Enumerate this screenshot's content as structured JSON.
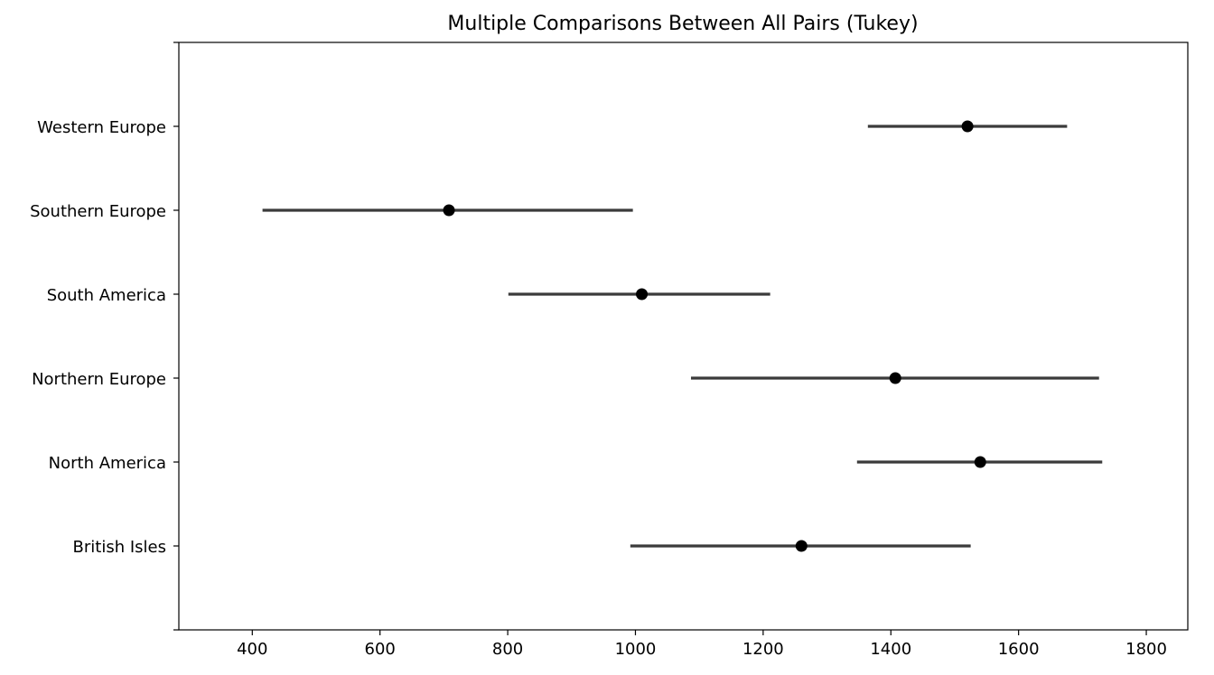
{
  "chart_data": {
    "type": "scatter",
    "title": "Multiple Comparisons Between All Pairs (Tukey)",
    "xlabel": "",
    "ylabel": "",
    "xlim": [
      285,
      1865
    ],
    "x_ticks": [
      400,
      600,
      800,
      1000,
      1200,
      1400,
      1600,
      1800
    ],
    "x_tick_labels": [
      "400",
      "600",
      "800",
      "1000",
      "1200",
      "1400",
      "1600",
      "1800"
    ],
    "categories": [
      "Western Europe",
      "Southern Europe",
      "South America",
      "Northern Europe",
      "North America",
      "British Isles"
    ],
    "means": [
      1520,
      708,
      1010,
      1407,
      1540,
      1260
    ],
    "lower": [
      1364,
      416,
      801,
      1087,
      1347,
      992
    ],
    "upper": [
      1676,
      996,
      1211,
      1726,
      1731,
      1525
    ],
    "grid": false,
    "colors": {
      "interval": "#3b3b3b",
      "marker": "#000000",
      "axes": "#000000"
    }
  }
}
